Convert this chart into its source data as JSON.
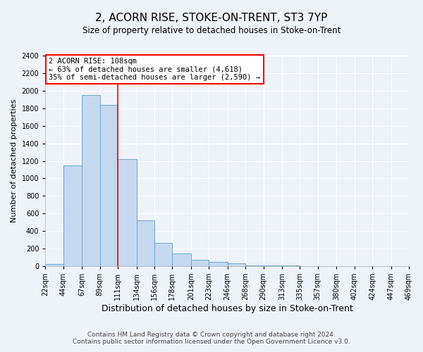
{
  "title": "2, ACORN RISE, STOKE-ON-TRENT, ST3 7YP",
  "subtitle": "Size of property relative to detached houses in Stoke-on-Trent",
  "xlabel": "Distribution of detached houses by size in Stoke-on-Trent",
  "ylabel": "Number of detached properties",
  "bin_edges": [
    22,
    44,
    67,
    89,
    111,
    134,
    156,
    178,
    201,
    223,
    246,
    268,
    290,
    313,
    335,
    357,
    380,
    402,
    424,
    447,
    469
  ],
  "bin_counts": [
    25,
    1150,
    1950,
    1840,
    1220,
    520,
    265,
    145,
    75,
    45,
    35,
    5,
    10,
    5,
    3,
    2,
    1,
    1,
    1,
    0
  ],
  "bar_color": "#c5d8f0",
  "bar_edge_color": "#6aaad4",
  "bar_linewidth": 0.7,
  "property_line_x": 111,
  "property_line_color": "red",
  "annotation_title": "2 ACORN RISE: 108sqm",
  "annotation_line1": "← 63% of detached houses are smaller (4,618)",
  "annotation_line2": "35% of semi-detached houses are larger (2,590) →",
  "annotation_box_color": "white",
  "annotation_box_edge_color": "red",
  "ylim": [
    0,
    2400
  ],
  "yticks": [
    0,
    200,
    400,
    600,
    800,
    1000,
    1200,
    1400,
    1600,
    1800,
    2000,
    2200,
    2400
  ],
  "tick_labels": [
    "22sqm",
    "44sqm",
    "67sqm",
    "89sqm",
    "111sqm",
    "134sqm",
    "156sqm",
    "178sqm",
    "201sqm",
    "223sqm",
    "246sqm",
    "268sqm",
    "290sqm",
    "313sqm",
    "335sqm",
    "357sqm",
    "380sqm",
    "402sqm",
    "424sqm",
    "447sqm",
    "469sqm"
  ],
  "footer_line1": "Contains HM Land Registry data © Crown copyright and database right 2024.",
  "footer_line2": "Contains public sector information licensed under the Open Government Licence v3.0.",
  "background_color": "#eef2f9",
  "grid_color": "white",
  "title_fontsize": 11,
  "subtitle_fontsize": 8.5,
  "xlabel_fontsize": 9,
  "ylabel_fontsize": 8,
  "tick_fontsize": 7,
  "footer_fontsize": 6.5
}
